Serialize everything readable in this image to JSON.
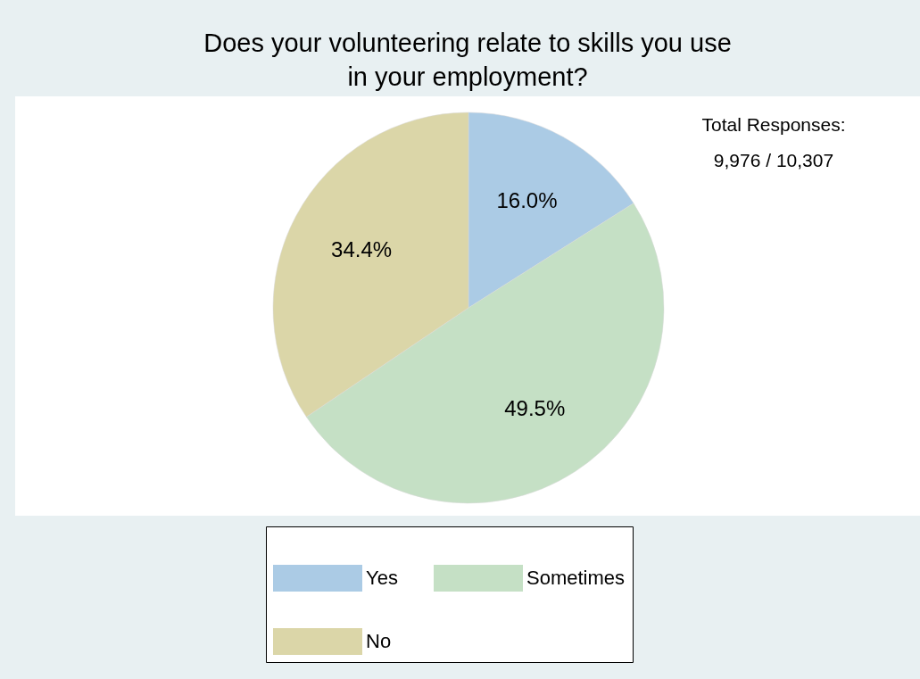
{
  "chart_data": {
    "type": "pie",
    "title": "Does your volunteering relate to skills you use\nin your employment?",
    "categories": [
      "Yes",
      "Sometimes",
      "No"
    ],
    "values": [
      16.0,
      49.5,
      34.4
    ],
    "colors": [
      "#abcbe5",
      "#c5e0c5",
      "#dbd6a8"
    ],
    "value_labels": [
      "16.0%",
      "49.5%",
      "34.4%"
    ],
    "annotations": [
      "Total Responses:\n9,976 / 10,307"
    ],
    "legend": "bottom"
  }
}
